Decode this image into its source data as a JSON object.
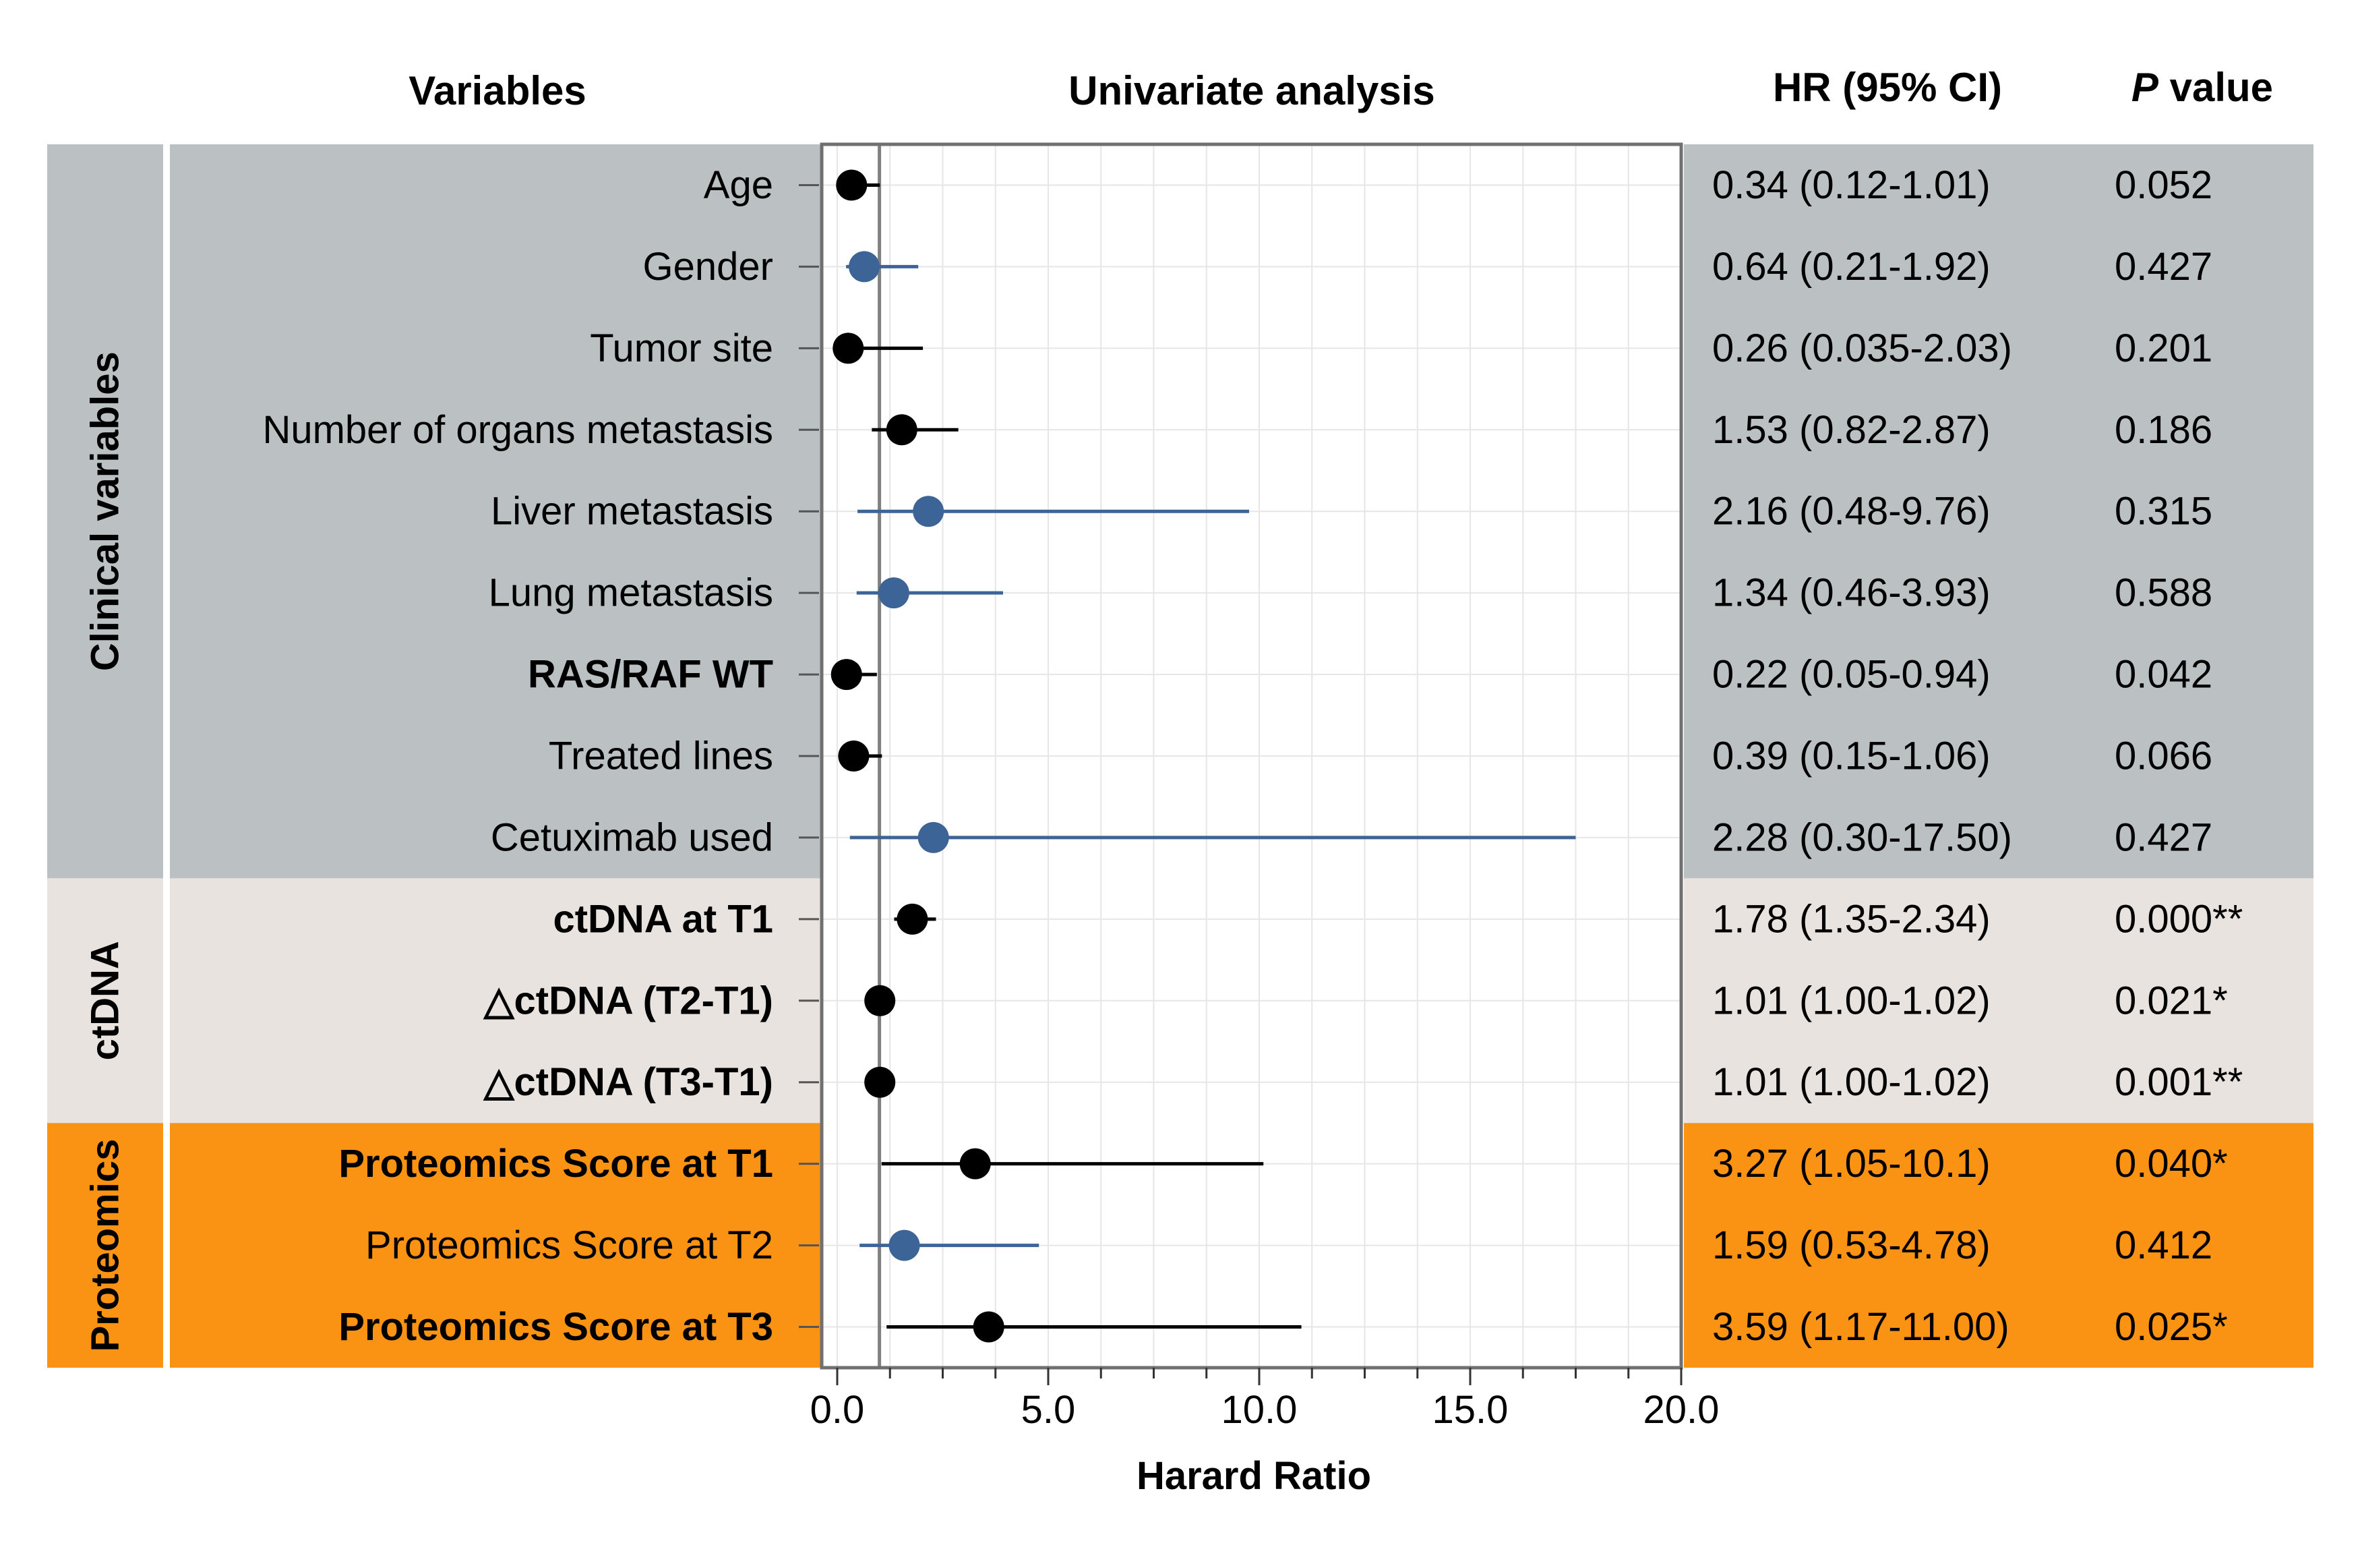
{
  "headers": {
    "variables": "Variables",
    "univariate": "Univariate analysis",
    "hr_ci": "HR (95%  CI)",
    "p_value_italic": "P",
    "p_value_rest": " value"
  },
  "groups": [
    {
      "label": "Clinical variables",
      "color": "#bbc0c3",
      "rows": [
        0,
        8
      ]
    },
    {
      "label": "ctDNA",
      "color": "#e9e3df",
      "rows": [
        9,
        11
      ]
    },
    {
      "label": "Proteomics",
      "color": "#fa9313",
      "rows": [
        12,
        14
      ]
    }
  ],
  "colors": {
    "black_series": "#000000",
    "blue_series": "#3d6496",
    "frame": "#707070",
    "reference_line": "#808080"
  },
  "chart_data": {
    "type": "forest",
    "xlabel": "Harard Ratio",
    "xlim": [
      0,
      20
    ],
    "xticks": [
      0,
      5,
      10,
      15,
      20
    ],
    "xtick_labels": [
      "0.0",
      "5.0",
      "10.0",
      "15.0",
      "20.0"
    ],
    "reference_value": 1,
    "grid": true,
    "rows": [
      {
        "label": "Age",
        "bold": false,
        "hr": 0.34,
        "lo": 0.12,
        "hi": 1.01,
        "ci_text": "0.34 (0.12-1.01)",
        "p": "0.052",
        "color": "black"
      },
      {
        "label": "Gender",
        "bold": false,
        "hr": 0.64,
        "lo": 0.21,
        "hi": 1.92,
        "ci_text": "0.64 (0.21-1.92)",
        "p": "0.427",
        "color": "blue"
      },
      {
        "label": "Tumor site",
        "bold": false,
        "hr": 0.26,
        "lo": 0.035,
        "hi": 2.03,
        "ci_text": "0.26 (0.035-2.03)",
        "p": "0.201",
        "color": "black"
      },
      {
        "label": "Number of organs metastasis",
        "bold": false,
        "hr": 1.53,
        "lo": 0.82,
        "hi": 2.87,
        "ci_text": "1.53 (0.82-2.87)",
        "p": "0.186",
        "color": "black"
      },
      {
        "label": "Liver metastasis",
        "bold": false,
        "hr": 2.16,
        "lo": 0.48,
        "hi": 9.76,
        "ci_text": "2.16 (0.48-9.76)",
        "p": "0.315",
        "color": "blue"
      },
      {
        "label": "Lung metastasis",
        "bold": false,
        "hr": 1.34,
        "lo": 0.46,
        "hi": 3.93,
        "ci_text": "1.34 (0.46-3.93)",
        "p": "0.588",
        "color": "blue"
      },
      {
        "label": "RAS/RAF WT",
        "bold": true,
        "hr": 0.22,
        "lo": 0.05,
        "hi": 0.94,
        "ci_text": "0.22 (0.05-0.94)",
        "p": "0.042",
        "color": "black"
      },
      {
        "label": "Treated lines",
        "bold": false,
        "hr": 0.39,
        "lo": 0.15,
        "hi": 1.06,
        "ci_text": "0.39 (0.15-1.06)",
        "p": "0.066",
        "color": "black"
      },
      {
        "label": "Cetuximab used",
        "bold": false,
        "hr": 2.28,
        "lo": 0.3,
        "hi": 17.5,
        "ci_text": "2.28 (0.30-17.50)",
        "p": "0.427",
        "color": "blue"
      },
      {
        "label": "ctDNA at T1",
        "bold": true,
        "hr": 1.78,
        "lo": 1.35,
        "hi": 2.34,
        "ci_text": "1.78 (1.35-2.34)",
        "p": "0.000**",
        "color": "black"
      },
      {
        "label": "△ctDNA (T2-T1)",
        "bold": true,
        "hr": 1.01,
        "lo": 1.0,
        "hi": 1.02,
        "ci_text": "1.01 (1.00-1.02)",
        "p": "0.021*",
        "color": "black"
      },
      {
        "label": "△ctDNA (T3-T1)",
        "bold": true,
        "hr": 1.01,
        "lo": 1.0,
        "hi": 1.02,
        "ci_text": "1.01 (1.00-1.02)",
        "p": "0.001**",
        "color": "black"
      },
      {
        "label": "Proteomics Score at T1",
        "bold": true,
        "hr": 3.27,
        "lo": 1.05,
        "hi": 10.1,
        "ci_text": "3.27 (1.05-10.1)",
        "p": "0.040*",
        "color": "black"
      },
      {
        "label": "Proteomics Score at T2",
        "bold": false,
        "hr": 1.59,
        "lo": 0.53,
        "hi": 4.78,
        "ci_text": "1.59 (0.53-4.78)",
        "p": "0.412",
        "color": "blue"
      },
      {
        "label": "Proteomics Score at T3",
        "bold": true,
        "hr": 3.59,
        "lo": 1.17,
        "hi": 11.0,
        "ci_text": "3.59 (1.17-11.00)",
        "p": "0.025*",
        "color": "black"
      }
    ]
  }
}
